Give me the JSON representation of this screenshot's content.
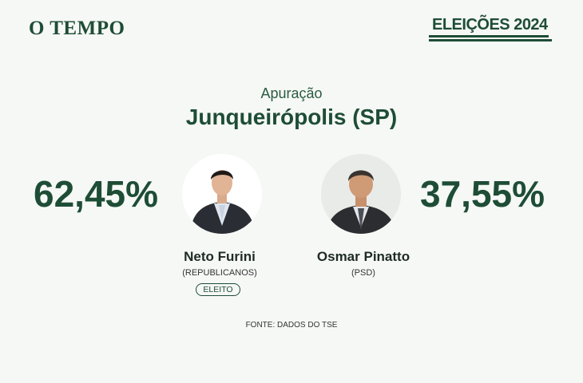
{
  "header": {
    "logo": "O TEMPO",
    "elections_label": "ELEIÇÕES 2024"
  },
  "main": {
    "subtitle": "Apuração",
    "city": "Junqueirópolis (SP)"
  },
  "candidates": [
    {
      "name": "Neto Furini",
      "party": "(REPUBLICANOS)",
      "percent": "62,45%",
      "status": "ELEITO"
    },
    {
      "name": "Osmar Pinatto",
      "party": "(PSD)",
      "percent": "37,55%"
    }
  ],
  "footer": {
    "source": "FONTE: DADOS DO TSE"
  },
  "colors": {
    "brand": "#1e4d36",
    "background": "#f6f8f6"
  }
}
